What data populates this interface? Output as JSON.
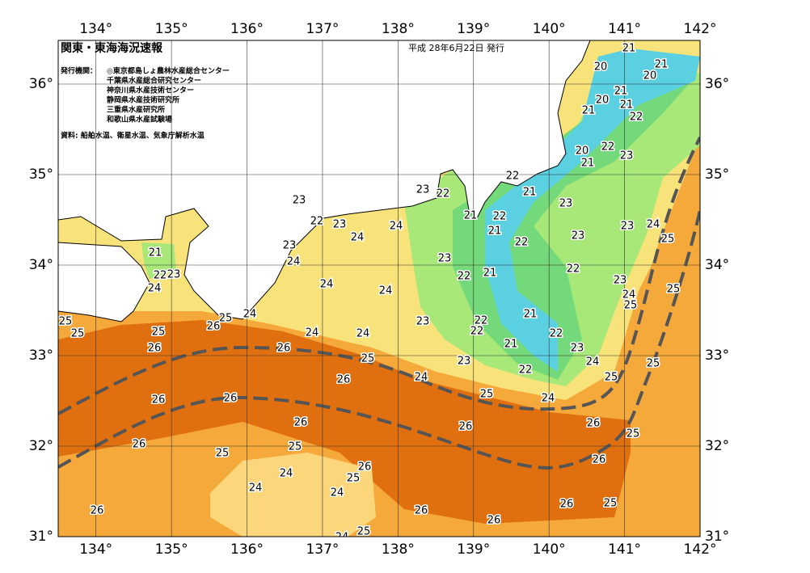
{
  "header": {
    "title": "関東・東海海況速報",
    "date": "平成 28年6月22日 発行",
    "issuer_label": "発行機関：",
    "issuers": [
      "◎東京都島しょ農林水産総合センター",
      "千葉県水産総合研究センター",
      "神奈川県水産技術センター",
      "静岡県水産技術研究所",
      "三重県水産研究所",
      "和歌山県水産試験場"
    ],
    "source": "資料: 船舶水温、衛星水温、気象庁解析水温"
  },
  "map": {
    "lon_ticks": [
      {
        "value": 134,
        "label": "134°"
      },
      {
        "value": 135,
        "label": "135°"
      },
      {
        "value": 136,
        "label": "136°"
      },
      {
        "value": 137,
        "label": "137°"
      },
      {
        "value": 138,
        "label": "138°"
      },
      {
        "value": 139,
        "label": "139°"
      },
      {
        "value": 140,
        "label": "140°"
      },
      {
        "value": 141,
        "label": "141°"
      },
      {
        "value": 142,
        "label": "142°"
      }
    ],
    "lat_ticks": [
      {
        "value": 31,
        "label": "31°"
      },
      {
        "value": 32,
        "label": "32°"
      },
      {
        "value": 33,
        "label": "33°"
      },
      {
        "value": 34,
        "label": "34°"
      },
      {
        "value": 35,
        "label": "35°"
      },
      {
        "value": 36,
        "label": "36°"
      }
    ],
    "contour_labels": [
      21,
      20,
      21,
      20,
      21,
      20,
      21,
      21,
      22,
      20,
      22,
      21,
      23,
      22,
      23,
      22,
      21,
      23,
      23,
      21,
      22,
      22,
      23,
      24,
      23,
      23,
      24,
      21,
      24,
      25,
      22,
      23,
      21,
      23,
      24,
      22,
      21,
      22,
      22,
      23,
      24,
      24,
      24,
      23,
      25,
      24,
      25,
      21,
      25,
      24,
      23,
      22,
      25,
      25,
      26,
      22,
      24,
      24,
      22,
      25,
      26,
      26,
      21,
      23,
      25,
      24,
      23,
      22,
      25,
      26,
      24,
      25,
      26,
      26,
      25,
      24,
      26,
      26,
      26,
      25,
      26,
      25,
      25,
      26,
      24,
      26,
      25,
      24,
      24,
      26,
      26,
      25,
      26,
      26,
      24,
      25
    ]
  }
}
